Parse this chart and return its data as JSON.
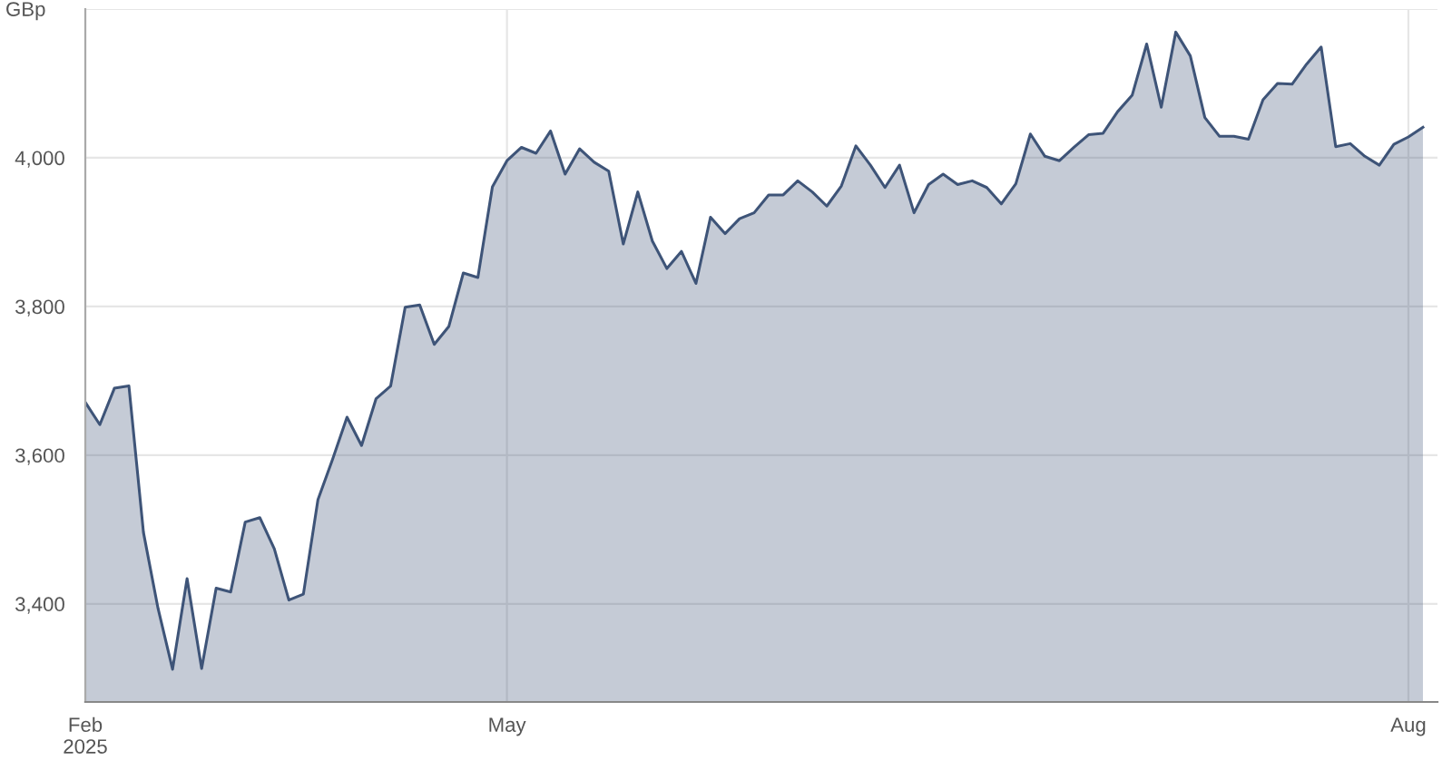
{
  "chart_data": {
    "type": "area",
    "ylabel": "GBp",
    "categories": [
      "Feb\n2025",
      null,
      null,
      null,
      null,
      null,
      null,
      null,
      null,
      null,
      null,
      null,
      null,
      null,
      null,
      null,
      null,
      null,
      null,
      null,
      null,
      null,
      null,
      null,
      null,
      null,
      null,
      null,
      null,
      "May",
      null,
      null,
      null,
      null,
      null,
      null,
      null,
      null,
      null,
      null,
      null,
      null,
      null,
      null,
      null,
      null,
      null,
      null,
      null,
      null,
      null,
      null,
      null,
      null,
      null,
      null,
      null,
      null,
      null,
      null,
      null,
      null,
      null,
      null,
      null,
      null,
      null,
      null,
      null,
      null,
      null,
      null,
      null,
      null,
      null,
      null,
      null,
      null,
      null,
      null,
      null,
      null,
      null,
      null,
      null,
      null,
      null,
      null,
      null,
      null,
      null,
      "Aug",
      null
    ],
    "series": [
      {
        "color": "#3e5478",
        "values": [
          3671,
          3641,
          3690,
          3693,
          3496,
          3394,
          3312,
          3434,
          3313,
          3421,
          3416,
          3510,
          3516,
          3474,
          3405,
          3413,
          3540,
          3594,
          3651,
          3613,
          3676,
          3693,
          3799,
          3802,
          3749,
          3773,
          3845,
          3839,
          3961,
          3996,
          4014,
          4006,
          4036,
          3978,
          4012,
          3994,
          3982,
          3884,
          3954,
          3888,
          3851,
          3874,
          3831,
          3920,
          3898,
          3918,
          3926,
          3950,
          3950,
          3969,
          3954,
          3935,
          3962,
          4016,
          3990,
          3960,
          3990,
          3926,
          3964,
          3978,
          3964,
          3969,
          3960,
          3938,
          3965,
          4032,
          4002,
          3996,
          4014,
          4031,
          4033,
          4062,
          4084,
          4153,
          4068,
          4169,
          4137,
          4054,
          4029,
          4029,
          4025,
          4078,
          4100,
          4099,
          4126,
          4149,
          4015,
          4019,
          4002,
          3990,
          4018,
          4028,
          4041
        ]
      }
    ],
    "ylim": [
      3268,
      4200
    ],
    "yticks": [
      {
        "value": 3400,
        "label": "3,400"
      },
      {
        "value": 3600,
        "label": "3,600"
      },
      {
        "value": 3800,
        "label": "3,800"
      },
      {
        "value": 4000,
        "label": "4,000"
      },
      {
        "value": 4200,
        "label": null
      }
    ],
    "grid": true
  }
}
